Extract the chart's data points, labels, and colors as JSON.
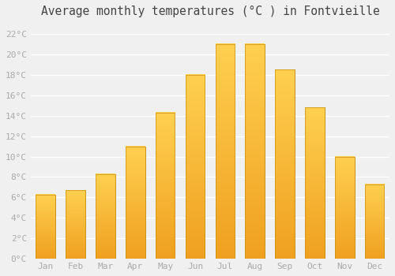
{
  "title": "Average monthly temperatures (°C ) in Fontvieille",
  "months": [
    "Jan",
    "Feb",
    "Mar",
    "Apr",
    "May",
    "Jun",
    "Jul",
    "Aug",
    "Sep",
    "Oct",
    "Nov",
    "Dec"
  ],
  "values": [
    6.3,
    6.7,
    8.3,
    11.0,
    14.3,
    18.0,
    21.0,
    21.0,
    18.5,
    14.8,
    10.0,
    7.3
  ],
  "bar_color_bottom": "#F0A020",
  "bar_color_top": "#FFD050",
  "bar_edge_color": "#C89010",
  "background_color": "#F0F0F0",
  "grid_color": "#FFFFFF",
  "ylim": [
    0,
    23
  ],
  "yticks": [
    0,
    2,
    4,
    6,
    8,
    10,
    12,
    14,
    16,
    18,
    20,
    22
  ],
  "tick_label_color": "#AAAAAA",
  "title_color": "#444444",
  "title_fontsize": 10.5,
  "tick_fontsize": 8,
  "bar_width": 0.65,
  "figsize": [
    5.0,
    3.5
  ],
  "dpi": 100
}
